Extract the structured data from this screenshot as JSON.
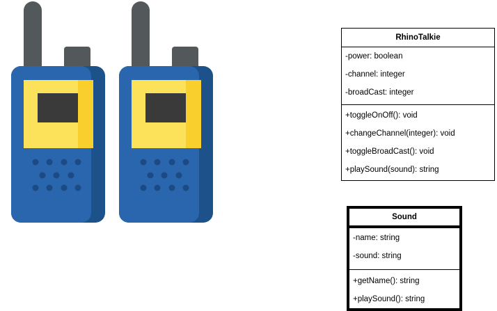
{
  "colors": {
    "antenna": "#53585a",
    "knob": "#53585a",
    "body": "#2a66ad",
    "body_shade": "#1c5189",
    "panel": "#fbe25a",
    "panel_shade": "#f9cf2e",
    "screen": "#3a3a3a",
    "speaker": "#1b4a85"
  },
  "classes": {
    "rhino": {
      "name": "RhinoTalkie",
      "attributes": [
        "-power: boolean",
        "-channel: integer",
        "-broadCast: integer"
      ],
      "operations": [
        "+toggleOnOff(): void",
        "+changeChannel(integer): void",
        "+toggleBroadCast(): void",
        "+playSound(sound): string"
      ]
    },
    "sound": {
      "name": "Sound",
      "attributes": [
        "-name: string",
        "-sound: string"
      ],
      "operations": [
        "+getName(): string",
        "+playSound(): string"
      ]
    }
  }
}
